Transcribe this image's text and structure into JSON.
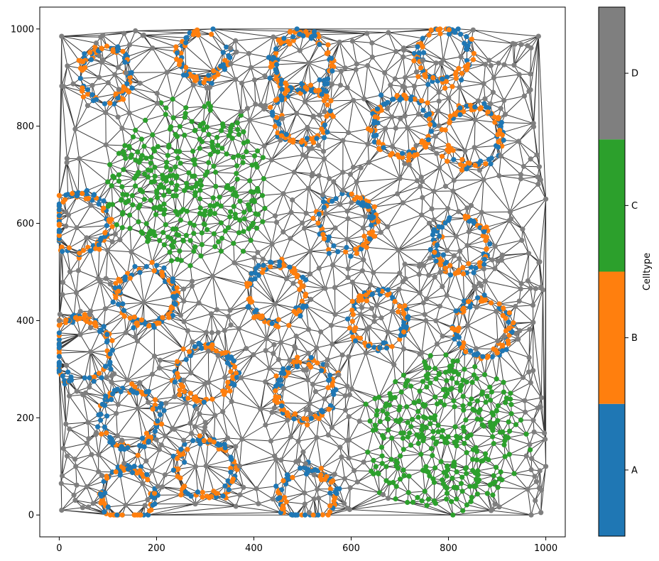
{
  "chart_data": {
    "type": "scatter",
    "title": "",
    "xlabel": "",
    "ylabel": "",
    "xlim": [
      -40,
      1040
    ],
    "ylim": [
      -45,
      1045
    ],
    "x_ticks": [
      0,
      200,
      400,
      600,
      800,
      1000
    ],
    "y_ticks": [
      0,
      200,
      400,
      600,
      800,
      1000
    ],
    "grid": false,
    "edges": "Delaunay triangulation of all points, dark gray lines",
    "node_color_default": "#7f7f7f",
    "edge_color": "#3a3a3a",
    "colorbar": {
      "title": "Celltype",
      "categories": [
        "A",
        "B",
        "C",
        "D"
      ],
      "colors": [
        "#1f77b4",
        "#ff7f0e",
        "#2ca02c",
        "#7f7f7f"
      ]
    },
    "structures": [
      {
        "type": "ring",
        "cx": 95,
        "cy": 905,
        "r": 55,
        "celltypes": [
          "A",
          "B"
        ]
      },
      {
        "type": "ring",
        "cx": 295,
        "cy": 945,
        "r": 48,
        "celltypes": [
          "A",
          "B"
        ]
      },
      {
        "type": "ring",
        "cx": 500,
        "cy": 930,
        "r": 60,
        "celltypes": [
          "A",
          "B"
        ]
      },
      {
        "type": "ring",
        "cx": 790,
        "cy": 945,
        "r": 55,
        "celltypes": [
          "A",
          "B"
        ]
      },
      {
        "type": "ring",
        "cx": 500,
        "cy": 825,
        "r": 58,
        "celltypes": [
          "A",
          "B"
        ]
      },
      {
        "type": "ring",
        "cx": 705,
        "cy": 800,
        "r": 60,
        "celltypes": [
          "A",
          "B"
        ]
      },
      {
        "type": "ring",
        "cx": 850,
        "cy": 780,
        "r": 60,
        "celltypes": [
          "A",
          "B"
        ]
      },
      {
        "type": "ring",
        "cx": 590,
        "cy": 600,
        "r": 58,
        "celltypes": [
          "A",
          "B"
        ]
      },
      {
        "type": "ring",
        "cx": 825,
        "cy": 555,
        "r": 55,
        "celltypes": [
          "A",
          "B"
        ]
      },
      {
        "type": "ring",
        "cx": 180,
        "cy": 450,
        "r": 60,
        "celltypes": [
          "A",
          "B"
        ]
      },
      {
        "type": "ring",
        "cx": 445,
        "cy": 455,
        "r": 60,
        "celltypes": [
          "A",
          "B"
        ]
      },
      {
        "type": "ring",
        "cx": 655,
        "cy": 400,
        "r": 58,
        "celltypes": [
          "A",
          "B"
        ]
      },
      {
        "type": "ring",
        "cx": 870,
        "cy": 385,
        "r": 58,
        "celltypes": [
          "A",
          "B"
        ]
      },
      {
        "type": "ring",
        "cx": 40,
        "cy": 340,
        "r": 65,
        "celltypes": [
          "A",
          "B"
        ]
      },
      {
        "type": "ring",
        "cx": 300,
        "cy": 290,
        "r": 58,
        "celltypes": [
          "A",
          "B"
        ]
      },
      {
        "type": "ring",
        "cx": 505,
        "cy": 255,
        "r": 58,
        "celltypes": [
          "A",
          "B"
        ]
      },
      {
        "type": "ring",
        "cx": 145,
        "cy": 200,
        "r": 60,
        "celltypes": [
          "A",
          "B"
        ]
      },
      {
        "type": "ring",
        "cx": 300,
        "cy": 95,
        "r": 60,
        "celltypes": [
          "A",
          "B"
        ]
      },
      {
        "type": "ring",
        "cx": 140,
        "cy": 40,
        "r": 55,
        "celltypes": [
          "A",
          "B"
        ]
      },
      {
        "type": "ring",
        "cx": 510,
        "cy": 40,
        "r": 55,
        "celltypes": [
          "A",
          "B"
        ]
      },
      {
        "type": "ring",
        "cx": 40,
        "cy": 600,
        "r": 60,
        "celltypes": [
          "A",
          "B"
        ]
      },
      {
        "type": "blob",
        "cx": 265,
        "cy": 680,
        "r": 165,
        "celltypes": [
          "C"
        ]
      },
      {
        "type": "blob",
        "cx": 790,
        "cy": 165,
        "r": 165,
        "celltypes": [
          "C"
        ]
      }
    ]
  }
}
